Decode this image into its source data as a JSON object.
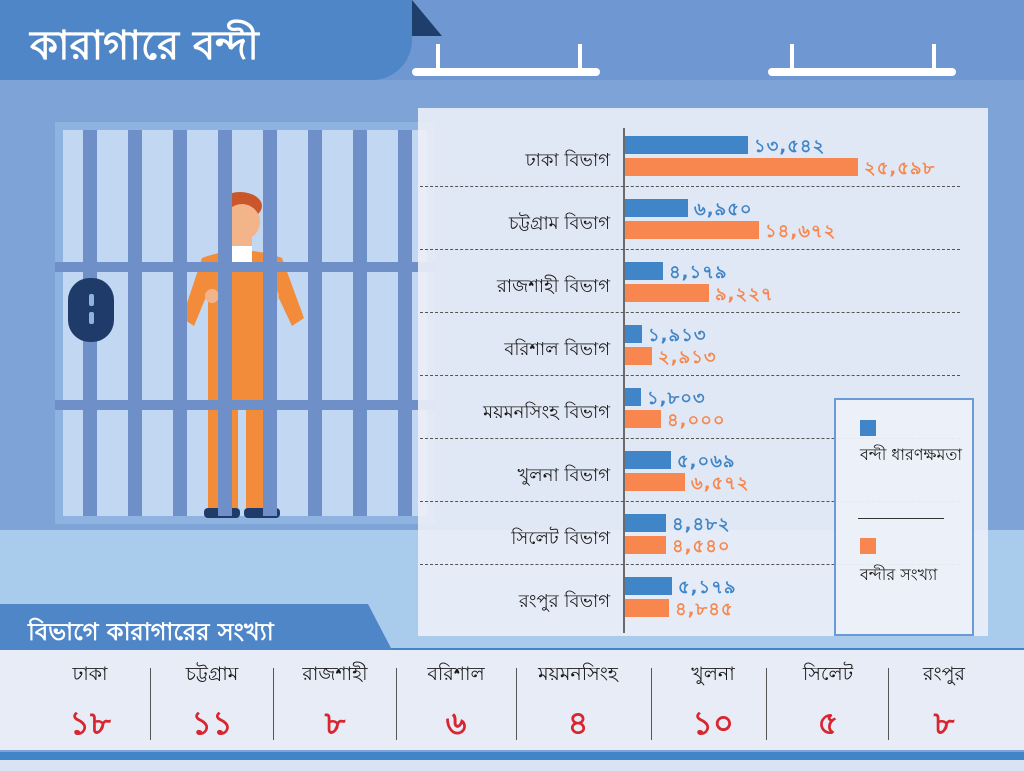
{
  "header": {
    "title": "কারাগারে বন্দী"
  },
  "chart_data": {
    "type": "bar",
    "orientation": "horizontal",
    "categories": [
      "ঢাকা বিভাগ",
      "চট্টগ্রাম বিভাগ",
      "রাজশাহী বিভাগ",
      "বরিশাল বিভাগ",
      "ময়মনসিংহ বিভাগ",
      "খুলনা বিভাগ",
      "সিলেট বিভাগ",
      "রংপুর বিভাগ"
    ],
    "series": [
      {
        "name": "বন্দী ধারণক্ষমতা",
        "values": [
          13542,
          6950,
          4179,
          1913,
          1803,
          5069,
          4482,
          5179
        ],
        "labels": [
          "১৩,৫৪২",
          "৬,৯৫০",
          "৪,১৭৯",
          "১,৯১৩",
          "১,৮০৩",
          "৫,০৬৯",
          "৪,৪৮২",
          "৫,১৭৯"
        ],
        "color": "#3f85c8"
      },
      {
        "name": "বন্দীর সংখ্যা",
        "values": [
          25598,
          14672,
          9227,
          2913,
          4000,
          6572,
          4540,
          4845
        ],
        "labels": [
          "২৫,৫৯৮",
          "১৪,৬৭২",
          "৯,২২৭",
          "২,৯১৩",
          "৪,০০০",
          "৬,৫৭২",
          "৪,৫৪০",
          "৪,৮৪৫"
        ],
        "color": "#f7874e"
      }
    ],
    "legend_position": "right",
    "grid": false
  },
  "legend": {
    "capacity": "বন্দী ধারণক্ষমতা",
    "count": "বন্দীর সংখ্যা"
  },
  "prison_count": {
    "title": "বিভাগে কারাগারের সংখ্যা",
    "items": [
      {
        "name": "ঢাকা",
        "value": "১৮"
      },
      {
        "name": "চট্টগ্রাম",
        "value": "১১"
      },
      {
        "name": "রাজশাহী",
        "value": "৮"
      },
      {
        "name": "বরিশাল",
        "value": "৬"
      },
      {
        "name": "ময়মনসিংহ",
        "value": "৪"
      },
      {
        "name": "খুলনা",
        "value": "১০"
      },
      {
        "name": "সিলেট",
        "value": "৫"
      },
      {
        "name": "রংপুর",
        "value": "৮"
      }
    ]
  }
}
